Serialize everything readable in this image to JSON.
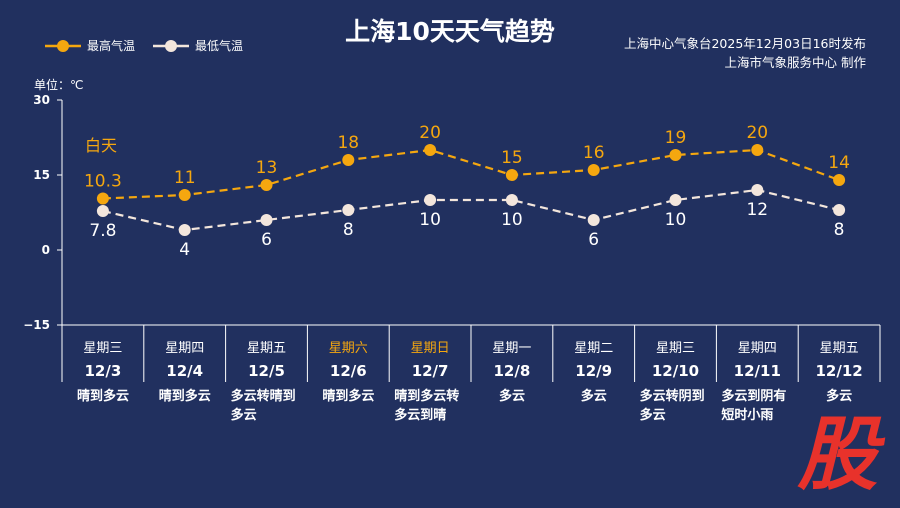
{
  "title": "上海10天天气趋势",
  "source_line1": "上海中心气象台2025年12月03日16时发布",
  "source_line2": "上海市气象服务中心 制作",
  "unit": "单位：℃",
  "daytime_label": "白天",
  "colors": {
    "high": "#f5a70f",
    "low": "#f3e6dc",
    "weekend": "#f5a70f",
    "bg": "#21305f",
    "stamp": "#e8322b"
  },
  "stamp_text": "股",
  "chart_data": {
    "type": "line",
    "title": "上海10天天气趋势",
    "ylim": [
      -15,
      30
    ],
    "yticks": [
      "30",
      "15",
      "0",
      "−15"
    ],
    "ytick_values": [
      30,
      15,
      0,
      -15
    ],
    "legend": "top-left",
    "categories": [
      "12/3",
      "12/4",
      "12/5",
      "12/6",
      "12/7",
      "12/8",
      "12/9",
      "12/10",
      "12/11",
      "12/12"
    ],
    "weekdays": [
      "星期三",
      "星期四",
      "星期五",
      "星期六",
      "星期日",
      "星期一",
      "星期二",
      "星期三",
      "星期四",
      "星期五"
    ],
    "weekend": [
      false,
      false,
      false,
      true,
      true,
      false,
      false,
      false,
      false,
      false
    ],
    "weather": [
      [
        "晴到多云"
      ],
      [
        "晴到多云"
      ],
      [
        "多云转晴到",
        "多云"
      ],
      [
        "晴到多云"
      ],
      [
        "晴到多云转",
        "多云到晴"
      ],
      [
        "多云"
      ],
      [
        "多云"
      ],
      [
        "多云转阴到",
        "多云"
      ],
      [
        "多云到阴有",
        "短时小雨"
      ],
      [
        "多云"
      ]
    ],
    "series": [
      {
        "name": "最高气温",
        "values": [
          10.3,
          11,
          13,
          18,
          20,
          15,
          16,
          19,
          20,
          14
        ]
      },
      {
        "name": "最低气温",
        "values": [
          7.8,
          4,
          6,
          8,
          10,
          10,
          6,
          10,
          12,
          8
        ]
      }
    ]
  }
}
